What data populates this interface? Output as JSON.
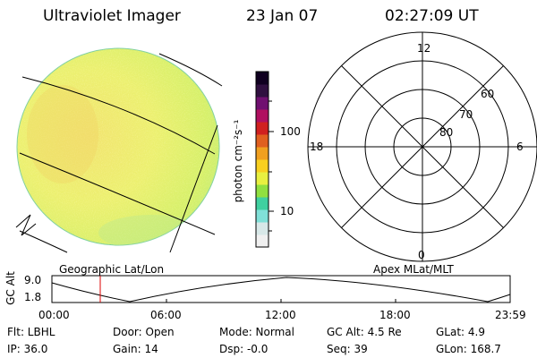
{
  "header": {
    "title": "Ultraviolet Imager",
    "date": "23 Jan 07",
    "time": "02:27:09 UT"
  },
  "colorbar": {
    "label": "photon cm⁻²s⁻¹",
    "ticks": [
      "100",
      "10"
    ],
    "scale": "log",
    "colors": [
      "#f0f0f0",
      "#d8e8e8",
      "#80e0d8",
      "#40d0a0",
      "#90e040",
      "#e8f040",
      "#f8d020",
      "#f0a020",
      "#e06020",
      "#d02020",
      "#b01060",
      "#701070",
      "#301040",
      "#100020"
    ]
  },
  "geo_image": {
    "label": "Geographic Lat/Lon"
  },
  "polar_plot": {
    "label": "Apex MLat/MLT",
    "mlt_labels": [
      "12",
      "18",
      "6",
      "0"
    ],
    "lat_labels": [
      "60",
      "70",
      "80"
    ]
  },
  "altitude_plot": {
    "ylabel": "GC Alt",
    "yticks": [
      "9.0",
      "1.8"
    ],
    "xticks": [
      "00:00",
      "06:00",
      "12:00",
      "18:00",
      "23:59"
    ],
    "marker_color": "#dd0000"
  },
  "info": {
    "flt": "Flt: LBHL",
    "ip": "IP: 36.0",
    "door": "Door: Open",
    "gain": "Gain: 14",
    "mode": "Mode: Normal",
    "dsp": "Dsp:   -0.0",
    "gcalt": "GC Alt: 4.5 Re",
    "seq": "Seq: 39",
    "glat": "GLat:   4.9",
    "glon": "GLon: 168.7"
  }
}
